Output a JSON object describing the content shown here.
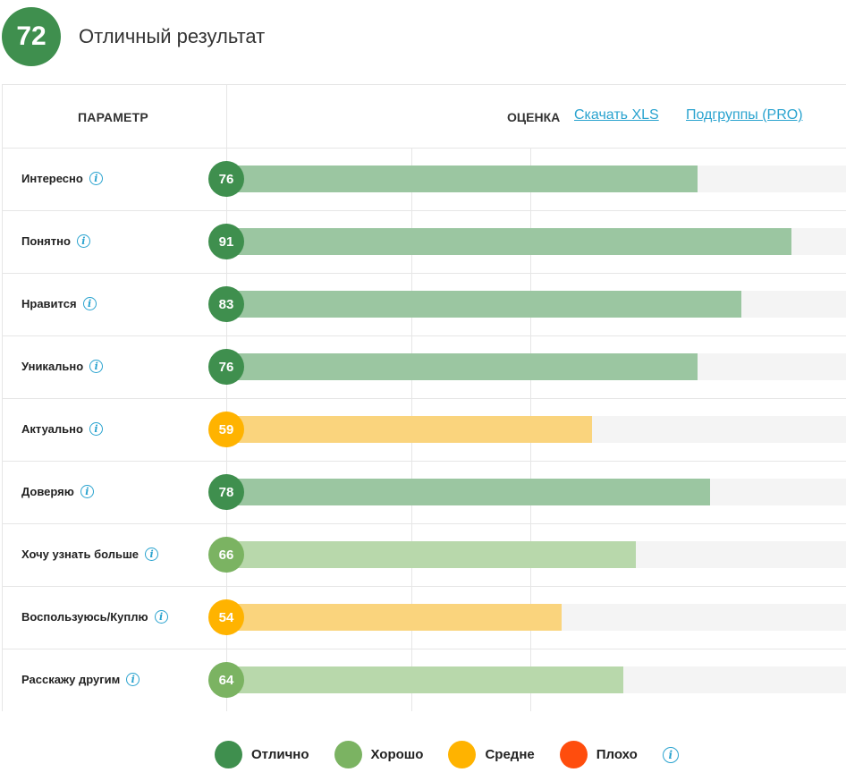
{
  "overall": {
    "score": "72",
    "label": "Отличный результат"
  },
  "header": {
    "param": "ПАРАМЕТР",
    "score": "ОЦЕНКА",
    "download_xls": "Скачать XLS",
    "subgroups": "Подгруппы (PRO)"
  },
  "colors": {
    "excellent": "#3f8f4e",
    "excellent_bar": "#9bc6a1",
    "good": "#7bb362",
    "good_bar": "#b8d8ab",
    "average": "#ffb300",
    "average_bar": "#fad47d",
    "bad": "#ff4d0d",
    "info": "#2aa3cf"
  },
  "chart_data": {
    "type": "bar",
    "orientation": "horizontal",
    "categories": [
      "Интересно",
      "Понятно",
      "Нравится",
      "Уникально",
      "Актуально",
      "Доверяю",
      "Хочу узнать больше",
      "Воспользуюсь/Куплю",
      "Расскажу другим"
    ],
    "values": [
      76,
      91,
      83,
      76,
      59,
      78,
      66,
      54,
      64
    ],
    "ratings": [
      "excellent",
      "excellent",
      "excellent",
      "excellent",
      "average",
      "excellent",
      "good",
      "average",
      "good"
    ],
    "xlim": [
      0,
      100
    ],
    "grid": true,
    "legend": [
      {
        "key": "excellent",
        "label": "Отлично"
      },
      {
        "key": "good",
        "label": "Хорошо"
      },
      {
        "key": "average",
        "label": "Средне"
      },
      {
        "key": "bad",
        "label": "Плохо"
      }
    ],
    "legend_position": "bottom"
  },
  "icons": {
    "info": "info-icon",
    "info_glyph": "i"
  }
}
